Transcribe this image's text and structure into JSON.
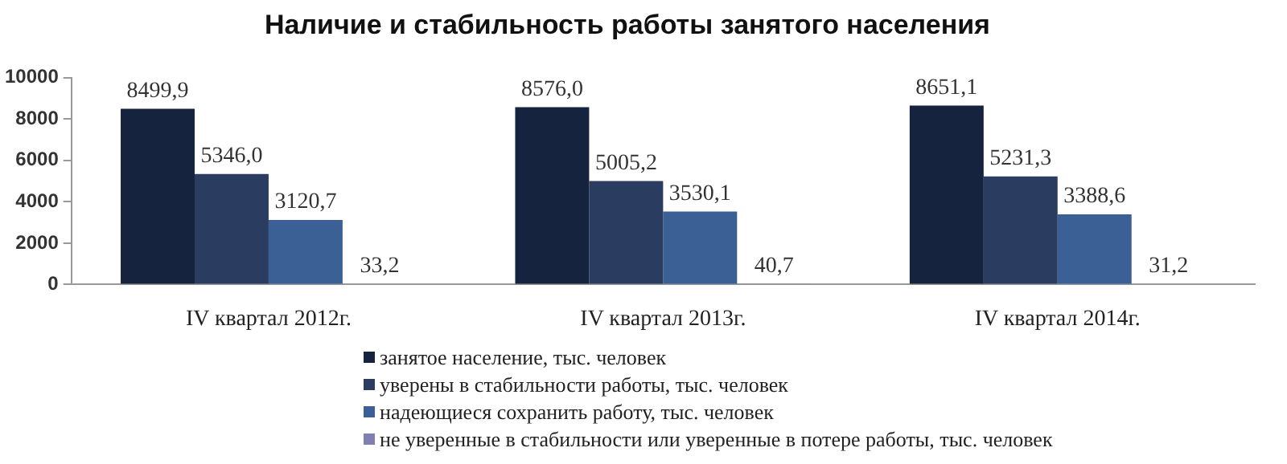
{
  "chart_data": {
    "type": "bar",
    "title": "Наличие и стабильность работы занятого населения",
    "categories": [
      "IV квартал 2012г.",
      "IV квартал 2013г.",
      "IV квартал 2014г."
    ],
    "series": [
      {
        "name": "занятое население, тыс. человек",
        "color": "#15233f",
        "values": [
          8499.9,
          8576.0,
          8651.1
        ],
        "value_labels": [
          "8499,9",
          "8576,0",
          "8651,1"
        ]
      },
      {
        "name": "уверены в стабильности работы, тыс. человек",
        "color": "#2a3d60",
        "values": [
          5346.0,
          5005.2,
          5231.3
        ],
        "value_labels": [
          "5346,0",
          "5005,2",
          "5231,3"
        ]
      },
      {
        "name": "надеющиеся сохранить работу, тыс. человек",
        "color": "#3a6096",
        "values": [
          3120.7,
          3530.1,
          3388.6
        ],
        "value_labels": [
          "3120,7",
          "3530,1",
          "3388,6"
        ]
      },
      {
        "name": "не уверенные в стабильности или уверенные в потере работы, тыс. человек",
        "color": "#7f7fb0",
        "values": [
          33.2,
          40.7,
          31.2
        ],
        "value_labels": [
          "33,2",
          "40,7",
          "31,2"
        ]
      }
    ],
    "ylim": [
      0,
      10000
    ],
    "yticks": [
      0,
      2000,
      4000,
      6000,
      8000,
      10000
    ],
    "grid": false,
    "legend": "bottom"
  }
}
